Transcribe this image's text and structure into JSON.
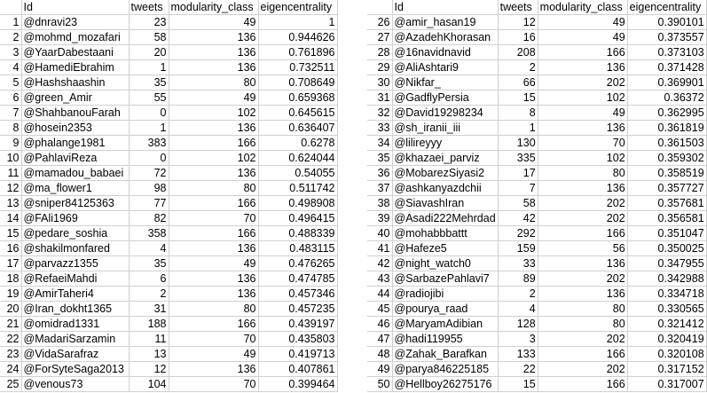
{
  "headers": [
    "Id",
    "tweets",
    "modularity_class",
    "eigencentrality"
  ],
  "left": [
    [
      "1",
      "@dnravi23",
      "23",
      "49",
      "1"
    ],
    [
      "2",
      "@mohmd_mozafari",
      "58",
      "136",
      "0.944626"
    ],
    [
      "3",
      "@YaarDabestaani",
      "20",
      "136",
      "0.761896"
    ],
    [
      "4",
      "@HamediEbrahim",
      "1",
      "136",
      "0.732511"
    ],
    [
      "5",
      "@Hashshaashin",
      "35",
      "80",
      "0.708649"
    ],
    [
      "6",
      "@green_Amir",
      "55",
      "49",
      "0.659368"
    ],
    [
      "7",
      "@ShahbanouFarah",
      "0",
      "102",
      "0.645615"
    ],
    [
      "8",
      "@hosein2353",
      "1",
      "136",
      "0.636407"
    ],
    [
      "9",
      "@phalange1981",
      "383",
      "166",
      "0.6278"
    ],
    [
      "10",
      "@PahlaviReza",
      "0",
      "102",
      "0.624044"
    ],
    [
      "11",
      "@mamadou_babaei",
      "72",
      "136",
      "0.54055"
    ],
    [
      "12",
      "@ma_flower1",
      "98",
      "80",
      "0.511742"
    ],
    [
      "13",
      "@sniper84125363",
      "77",
      "166",
      "0.498908"
    ],
    [
      "14",
      "@FAli1969",
      "82",
      "70",
      "0.496415"
    ],
    [
      "15",
      "@pedare_soshia",
      "358",
      "166",
      "0.488339"
    ],
    [
      "16",
      "@shakilmonfared",
      "4",
      "136",
      "0.483115"
    ],
    [
      "17",
      "@parvazz1355",
      "35",
      "49",
      "0.476265"
    ],
    [
      "18",
      "@RefaeiMahdi",
      "6",
      "136",
      "0.474785"
    ],
    [
      "19",
      "@AmirTaheri4",
      "2",
      "136",
      "0.457346"
    ],
    [
      "20",
      "@Iran_dokht1365",
      "31",
      "80",
      "0.457235"
    ],
    [
      "21",
      "@omidrad1331",
      "188",
      "166",
      "0.439197"
    ],
    [
      "22",
      "@MadariSarzamin",
      "11",
      "70",
      "0.435803"
    ],
    [
      "23",
      "@VidaSarafraz",
      "13",
      "49",
      "0.419713"
    ],
    [
      "24",
      "@ForSyteSaga2013",
      "12",
      "136",
      "0.407861"
    ],
    [
      "25",
      "@venous73",
      "104",
      "70",
      "0.399464"
    ]
  ],
  "right": [
    [
      "26",
      "@amir_hasan19",
      "12",
      "49",
      "0.390101"
    ],
    [
      "27",
      "@AzadehKhorasan",
      "16",
      "49",
      "0.373557"
    ],
    [
      "28",
      "@16navidnavid",
      "208",
      "166",
      "0.373103"
    ],
    [
      "29",
      "@AliAshtari9",
      "2",
      "136",
      "0.371428"
    ],
    [
      "30",
      "@Nikfar_",
      "66",
      "202",
      "0.369901"
    ],
    [
      "31",
      "@GadflyPersia",
      "15",
      "102",
      "0.36372"
    ],
    [
      "32",
      "@David19298234",
      "8",
      "49",
      "0.362995"
    ],
    [
      "33",
      "@sh_iranii_iii",
      "1",
      "136",
      "0.361819"
    ],
    [
      "34",
      "@lilireyyy",
      "130",
      "70",
      "0.361503"
    ],
    [
      "35",
      "@khazaei_parviz",
      "335",
      "102",
      "0.359302"
    ],
    [
      "36",
      "@MobarezSiyasi2",
      "17",
      "80",
      "0.358519"
    ],
    [
      "37",
      "@ashkanyazdchii",
      "7",
      "136",
      "0.357727"
    ],
    [
      "38",
      "@SiavashIran",
      "58",
      "202",
      "0.357681"
    ],
    [
      "39",
      "@Asadi222Mehrdad",
      "42",
      "202",
      "0.356581"
    ],
    [
      "40",
      "@mohabbbattt",
      "292",
      "166",
      "0.351047"
    ],
    [
      "41",
      "@Hafeze5",
      "159",
      "56",
      "0.350025"
    ],
    [
      "42",
      "@night_watch0",
      "33",
      "136",
      "0.347955"
    ],
    [
      "43",
      "@SarbazePahlavi7",
      "89",
      "202",
      "0.342988"
    ],
    [
      "44",
      "@radiojibi",
      "2",
      "136",
      "0.334718"
    ],
    [
      "45",
      "@pourya_raad",
      "4",
      "80",
      "0.330565"
    ],
    [
      "46",
      "@MaryamAdibian",
      "128",
      "80",
      "0.321412"
    ],
    [
      "47",
      "@hadi119955",
      "3",
      "202",
      "0.320419"
    ],
    [
      "48",
      "@Zahak_Barafkan",
      "133",
      "166",
      "0.320108"
    ],
    [
      "49",
      "@parya846225185",
      "22",
      "202",
      "0.317152"
    ],
    [
      "50",
      "@Hellboy26275176",
      "15",
      "166",
      "0.317007"
    ]
  ]
}
